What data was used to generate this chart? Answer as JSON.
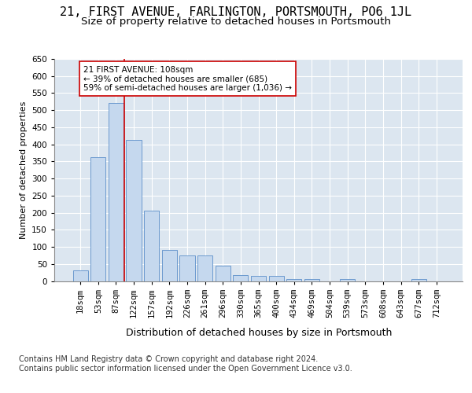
{
  "title": "21, FIRST AVENUE, FARLINGTON, PORTSMOUTH, PO6 1JL",
  "subtitle": "Size of property relative to detached houses in Portsmouth",
  "xlabel": "Distribution of detached houses by size in Portsmouth",
  "ylabel": "Number of detached properties",
  "bin_labels": [
    "18sqm",
    "53sqm",
    "87sqm",
    "122sqm",
    "157sqm",
    "192sqm",
    "226sqm",
    "261sqm",
    "296sqm",
    "330sqm",
    "365sqm",
    "400sqm",
    "434sqm",
    "469sqm",
    "504sqm",
    "539sqm",
    "573sqm",
    "608sqm",
    "643sqm",
    "677sqm",
    "712sqm"
  ],
  "bar_heights": [
    30,
    362,
    521,
    412,
    207,
    90,
    75,
    75,
    45,
    18,
    15,
    15,
    5,
    5,
    0,
    5,
    0,
    0,
    0,
    5,
    0
  ],
  "bar_color": "#c5d8ee",
  "bar_edge_color": "#5b8fc9",
  "property_line_x": 2.45,
  "property_line_color": "#cc0000",
  "annotation_text": "21 FIRST AVENUE: 108sqm\n← 39% of detached houses are smaller (685)\n59% of semi-detached houses are larger (1,036) →",
  "annotation_box_color": "#ffffff",
  "annotation_box_edge_color": "#cc0000",
  "ylim": [
    0,
    650
  ],
  "yticks": [
    0,
    50,
    100,
    150,
    200,
    250,
    300,
    350,
    400,
    450,
    500,
    550,
    600,
    650
  ],
  "background_color": "#dce6f0",
  "footer_text": "Contains HM Land Registry data © Crown copyright and database right 2024.\nContains public sector information licensed under the Open Government Licence v3.0.",
  "title_fontsize": 11,
  "subtitle_fontsize": 9.5,
  "xlabel_fontsize": 9,
  "ylabel_fontsize": 8,
  "tick_fontsize": 7.5,
  "annotation_fontsize": 7.5,
  "footer_fontsize": 7
}
